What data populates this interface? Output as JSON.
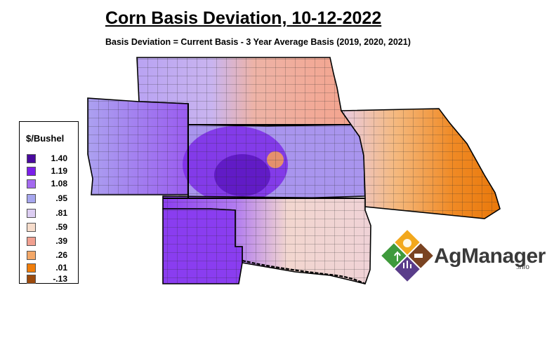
{
  "title": "Corn Basis Deviation, 10-12-2022",
  "subtitle": "Basis Deviation = Current Basis - 3 Year Average Basis (2019, 2020, 2021)",
  "legend": {
    "title": "$/Bushel",
    "items": [
      {
        "label": "1.40",
        "color": "#4a0a9e"
      },
      {
        "label": "1.19",
        "color": "#7b1fea"
      },
      {
        "label": "1.08",
        "color": "#a46af0"
      },
      {
        "label": ".95",
        "color": "#a6a6ee"
      },
      {
        "label": ".81",
        "color": "#dccdf2"
      },
      {
        "label": ".59",
        "color": "#f6dccb"
      },
      {
        "label": ".39",
        "color": "#f1a090"
      },
      {
        "label": ".26",
        "color": "#f4a868"
      },
      {
        "label": ".01",
        "color": "#f07d0a"
      },
      {
        "label": "-.13",
        "color": "#9c4a0c"
      }
    ]
  },
  "logo": {
    "name": "AgManager",
    "suffix": ".info"
  }
}
